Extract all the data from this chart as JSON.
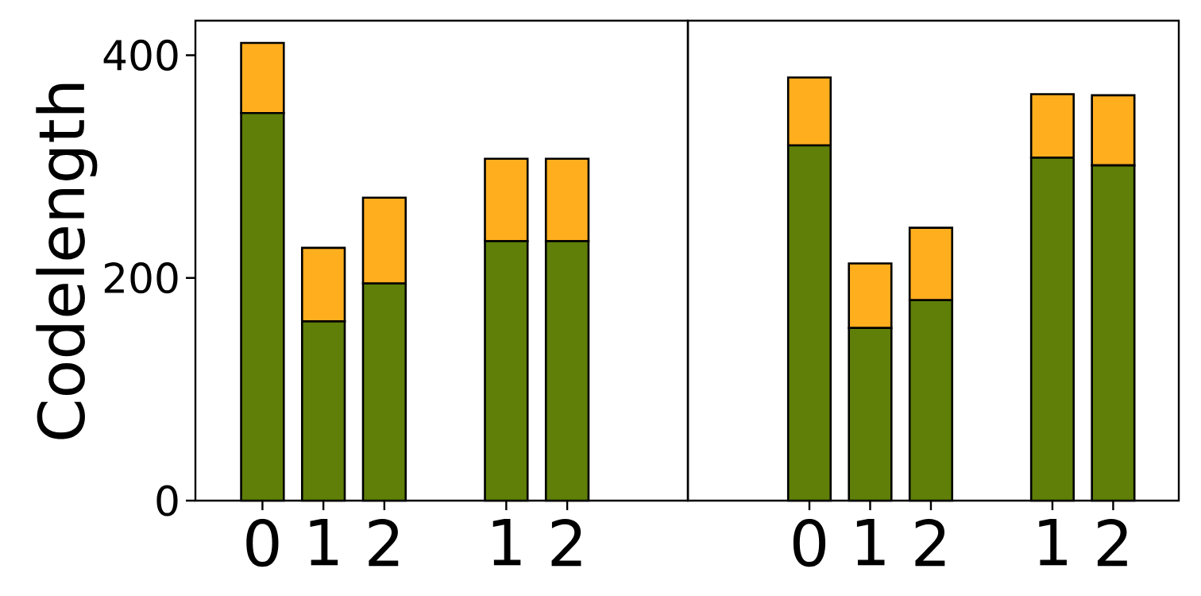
{
  "chart_data": [
    {
      "type": "bar",
      "stacked": true,
      "ylabel": "Codelength",
      "categories": [
        "0",
        "1",
        "2",
        null,
        "1",
        "2"
      ],
      "ylim": [
        0,
        431
      ],
      "yticks": [
        0,
        200,
        400
      ],
      "series": [
        {
          "color": "#5f7f08",
          "values": [
            348,
            161,
            195,
            null,
            233,
            233
          ]
        },
        {
          "color": "#ffae1e",
          "values": [
            63,
            66,
            77,
            null,
            74,
            74
          ]
        }
      ]
    },
    {
      "type": "bar",
      "stacked": true,
      "categories": [
        "0",
        "1",
        "2",
        null,
        "1",
        "2"
      ],
      "ylim": [
        0,
        431
      ],
      "tick_labels": "x",
      "series": [
        {
          "color": "#5f7f08",
          "values": [
            319,
            155,
            180,
            null,
            308,
            301
          ]
        },
        {
          "color": "#ffae1e",
          "values": [
            61,
            58,
            65,
            null,
            57,
            63
          ]
        }
      ]
    }
  ]
}
